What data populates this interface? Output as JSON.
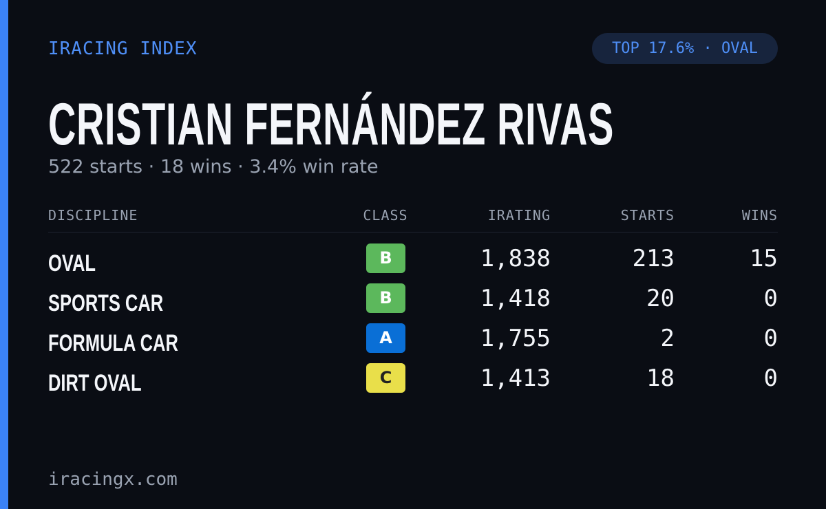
{
  "header": {
    "brand": "IRACING INDEX",
    "badge": "TOP 17.6% · OVAL"
  },
  "driver": {
    "name": "CRISTIAN FERNÁNDEZ RIVAS",
    "summary": "522 starts · 18 wins · 3.4% win rate"
  },
  "table": {
    "columns": [
      "DISCIPLINE",
      "CLASS",
      "IRATING",
      "STARTS",
      "WINS"
    ],
    "rows": [
      {
        "discipline": "OVAL",
        "class": "B",
        "class_color": "#5cb85c",
        "irating": "1,838",
        "starts": "213",
        "wins": "15"
      },
      {
        "discipline": "SPORTS CAR",
        "class": "B",
        "class_color": "#5cb85c",
        "irating": "1,418",
        "starts": "20",
        "wins": "0"
      },
      {
        "discipline": "FORMULA CAR",
        "class": "A",
        "class_color": "#0a6fd6",
        "irating": "1,755",
        "starts": "2",
        "wins": "0"
      },
      {
        "discipline": "DIRT OVAL",
        "class": "C",
        "class_color": "#e9df4a",
        "irating": "1,413",
        "starts": "18",
        "wins": "0"
      }
    ]
  },
  "footer": {
    "site": "iracingx.com"
  }
}
